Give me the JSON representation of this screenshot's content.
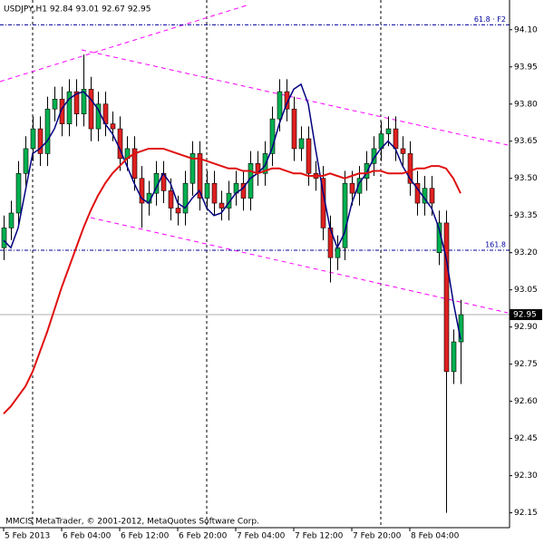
{
  "chart_data": {
    "type": "candlestick",
    "title": "USDJPY,H1  92.84 93.01 92.67 92.95",
    "footer": "MMCIS MetaTrader, © 2001-2012, MetaQuotes Software Corp.",
    "categories": [
      "5 Feb 2013",
      null,
      null,
      null,
      null,
      null,
      null,
      null,
      "6 Feb 04:00",
      null,
      null,
      null,
      null,
      null,
      null,
      null,
      "6 Feb 12:00",
      null,
      null,
      null,
      null,
      null,
      null,
      null,
      "6 Feb 20:00",
      null,
      null,
      null,
      null,
      null,
      null,
      null,
      "7 Feb 04:00",
      null,
      null,
      null,
      null,
      null,
      null,
      null,
      "7 Feb 12:00",
      null,
      null,
      null,
      null,
      null,
      null,
      null,
      "7 Feb 20:00",
      null,
      null,
      null,
      null,
      null,
      null,
      null,
      "8 Feb 04:00",
      null,
      null,
      null,
      null,
      null,
      null,
      null
    ],
    "open": [
      93.22,
      93.3,
      93.36,
      93.52,
      93.62,
      93.7,
      93.6,
      93.78,
      93.82,
      93.72,
      93.85,
      93.76,
      93.86,
      93.7,
      93.8,
      93.72,
      93.7,
      93.58,
      93.62,
      93.5,
      93.4,
      93.44,
      93.52,
      93.45,
      93.38,
      93.36,
      93.48,
      93.6,
      93.42,
      93.48,
      93.4,
      93.38,
      93.44,
      93.48,
      93.42,
      93.56,
      93.52,
      93.6,
      93.74,
      93.85,
      93.78,
      93.62,
      93.66,
      93.52,
      93.5,
      93.3,
      93.18,
      93.22,
      93.48,
      93.44,
      93.5,
      93.56,
      93.62,
      93.68,
      93.7,
      93.62,
      93.6,
      93.48,
      93.4,
      93.46,
      93.2,
      93.32,
      92.72,
      92.84
    ],
    "high": [
      93.35,
      93.41,
      93.57,
      93.67,
      93.75,
      93.75,
      93.83,
      93.87,
      93.87,
      93.9,
      93.9,
      94.0,
      93.91,
      93.85,
      93.85,
      93.77,
      93.75,
      93.67,
      93.67,
      93.55,
      93.49,
      93.57,
      93.57,
      93.5,
      93.43,
      93.53,
      93.65,
      93.65,
      93.53,
      93.53,
      93.45,
      93.49,
      93.53,
      93.53,
      93.61,
      93.61,
      93.65,
      93.79,
      93.9,
      93.9,
      93.83,
      93.71,
      93.71,
      93.57,
      93.55,
      93.35,
      93.27,
      93.53,
      93.53,
      93.55,
      93.61,
      93.67,
      93.73,
      93.75,
      93.75,
      93.67,
      93.65,
      93.53,
      93.51,
      93.51,
      93.37,
      93.37,
      92.89,
      93.01
    ],
    "low": [
      93.17,
      93.25,
      93.31,
      93.47,
      93.57,
      93.55,
      93.55,
      93.73,
      93.67,
      93.67,
      93.71,
      93.71,
      93.65,
      93.65,
      93.67,
      93.65,
      93.53,
      93.53,
      93.45,
      93.3,
      93.35,
      93.39,
      93.4,
      93.33,
      93.31,
      93.31,
      93.43,
      93.37,
      93.37,
      93.35,
      93.33,
      93.33,
      93.39,
      93.37,
      93.37,
      93.47,
      93.47,
      93.55,
      93.69,
      93.73,
      93.57,
      93.57,
      93.47,
      93.45,
      93.25,
      93.08,
      93.13,
      93.17,
      93.39,
      93.39,
      93.45,
      93.51,
      93.57,
      93.63,
      93.57,
      93.55,
      93.43,
      93.35,
      93.35,
      93.35,
      93.15,
      92.15,
      92.67,
      92.67
    ],
    "close": [
      93.3,
      93.36,
      93.52,
      93.62,
      93.7,
      93.6,
      93.78,
      93.82,
      93.72,
      93.85,
      93.76,
      93.86,
      93.7,
      93.8,
      93.72,
      93.7,
      93.58,
      93.62,
      93.5,
      93.4,
      93.44,
      93.52,
      93.45,
      93.38,
      93.36,
      93.48,
      93.6,
      93.42,
      93.48,
      93.4,
      93.38,
      93.44,
      93.48,
      93.42,
      93.56,
      93.52,
      93.6,
      93.74,
      93.85,
      93.78,
      93.62,
      93.66,
      93.52,
      93.5,
      93.3,
      93.18,
      93.22,
      93.48,
      93.44,
      93.5,
      93.56,
      93.62,
      93.68,
      93.7,
      93.62,
      93.6,
      93.48,
      93.4,
      93.46,
      93.4,
      93.32,
      92.72,
      92.84,
      92.95
    ],
    "up_color": "#00b050",
    "down_color": "#e02020",
    "lines": [
      {
        "color": "#000080",
        "values": [
          93.25,
          93.22,
          93.3,
          93.45,
          93.6,
          93.62,
          93.65,
          93.7,
          93.78,
          93.82,
          93.84,
          93.85,
          93.82,
          93.78,
          93.72,
          93.68,
          93.62,
          93.55,
          93.48,
          93.42,
          93.4,
          93.46,
          93.52,
          93.48,
          93.4,
          93.38,
          93.42,
          93.45,
          93.38,
          93.35,
          93.36,
          93.4,
          93.44,
          93.46,
          93.5,
          93.52,
          93.55,
          93.62,
          93.72,
          93.8,
          93.86,
          93.88,
          93.8,
          93.62,
          93.45,
          93.3,
          93.22,
          93.28,
          93.4,
          93.48,
          93.52,
          93.58,
          93.62,
          93.65,
          93.62,
          93.55,
          93.5,
          93.46,
          93.42,
          93.38,
          93.3,
          93.18,
          93.0,
          92.85
        ]
      },
      {
        "color": "#e01010",
        "values": [
          92.55,
          92.58,
          92.62,
          92.66,
          92.72,
          92.8,
          92.88,
          92.97,
          93.06,
          93.14,
          93.22,
          93.3,
          93.37,
          93.43,
          93.48,
          93.52,
          93.55,
          93.58,
          93.6,
          93.61,
          93.62,
          93.62,
          93.62,
          93.61,
          93.6,
          93.59,
          93.58,
          93.58,
          93.57,
          93.56,
          93.55,
          93.54,
          93.54,
          93.53,
          93.53,
          93.52,
          93.53,
          93.54,
          93.54,
          93.53,
          93.52,
          93.52,
          93.51,
          93.51,
          93.51,
          93.52,
          93.51,
          93.5,
          93.51,
          93.52,
          93.52,
          93.53,
          93.53,
          93.52,
          93.52,
          93.52,
          93.53,
          93.54,
          93.54,
          93.55,
          93.55,
          93.54,
          93.5,
          93.44
        ]
      }
    ],
    "levels": [
      {
        "value": 94.12,
        "label": "61.8 · F2"
      },
      {
        "value": 93.21,
        "label": "161.8"
      }
    ],
    "last_price": 92.95,
    "ylim": [
      92.09,
      94.22
    ],
    "yticks": [
      {
        "value": 94.1,
        "label": "94.10"
      },
      93.95,
      {
        "value": 93.8,
        "label": "93.80"
      },
      93.65,
      {
        "value": 93.5,
        "label": "93.50"
      },
      93.35,
      {
        "value": 93.2,
        "label": "93.20"
      },
      93.05,
      {
        "value": 92.9,
        "label": "92.90"
      },
      92.75,
      {
        "value": 92.6,
        "label": "92.60"
      },
      92.45,
      {
        "value": 92.3,
        "label": "92.30"
      },
      92.15
    ]
  }
}
